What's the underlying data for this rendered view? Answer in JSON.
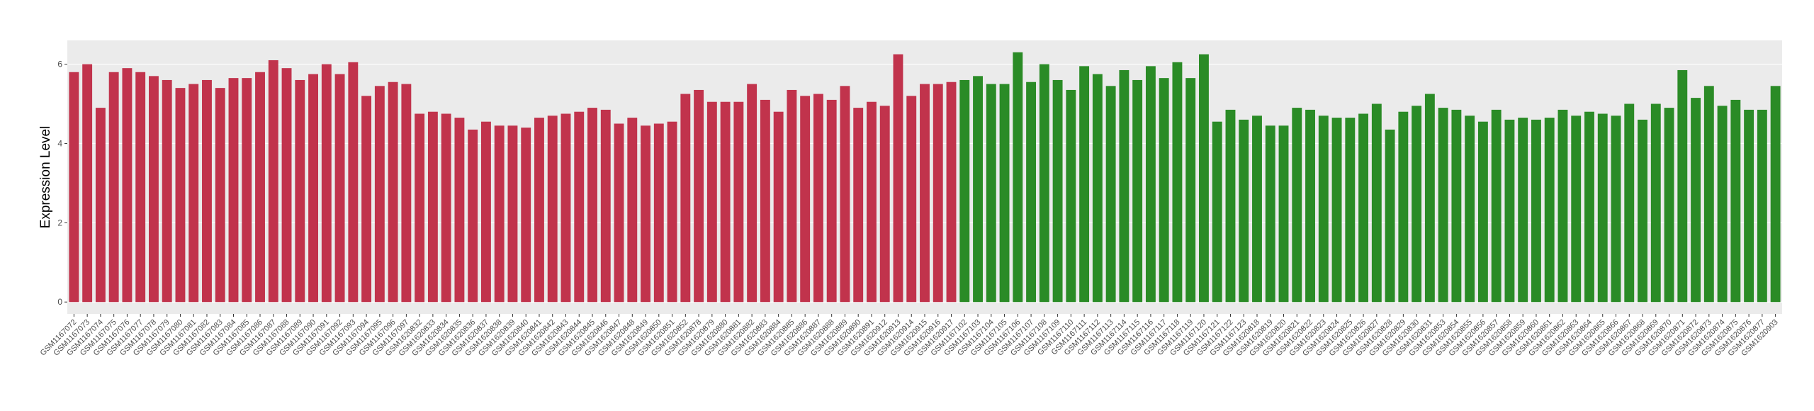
{
  "chart_data": {
    "type": "bar",
    "ylabel": "Expression Level",
    "categories": [
      "GSM1167072",
      "GSM1167073",
      "GSM1167074",
      "GSM1167075",
      "GSM1167076",
      "GSM1167077",
      "GSM1167078",
      "GSM1167079",
      "GSM1167080",
      "GSM1167081",
      "GSM1167082",
      "GSM1167083",
      "GSM1167084",
      "GSM1167085",
      "GSM1167086",
      "GSM1167087",
      "GSM1167088",
      "GSM1167089",
      "GSM1167090",
      "GSM1167091",
      "GSM1167092",
      "GSM1167093",
      "GSM1167094",
      "GSM1167095",
      "GSM1167096",
      "GSM1167097",
      "GSM1620832",
      "GSM1620833",
      "GSM1620834",
      "GSM1620835",
      "GSM1620836",
      "GSM1620837",
      "GSM1620838",
      "GSM1620839",
      "GSM1620840",
      "GSM1620841",
      "GSM1620842",
      "GSM1620843",
      "GSM1620844",
      "GSM1620845",
      "GSM1620846",
      "GSM1620847",
      "GSM1620848",
      "GSM1620849",
      "GSM1620850",
      "GSM1620851",
      "GSM1620852",
      "GSM1620878",
      "GSM1620879",
      "GSM1620880",
      "GSM1620881",
      "GSM1620882",
      "GSM1620883",
      "GSM1620884",
      "GSM1620885",
      "GSM1620886",
      "GSM1620887",
      "GSM1620888",
      "GSM1620889",
      "GSM1620890",
      "GSM1620891",
      "GSM1620912",
      "GSM1620913",
      "GSM1620914",
      "GSM1620915",
      "GSM1620916",
      "GSM1620917",
      "GSM1167102",
      "GSM1167103",
      "GSM1167104",
      "GSM1167105",
      "GSM1167106",
      "GSM1167107",
      "GSM1167108",
      "GSM1167109",
      "GSM1167110",
      "GSM1167111",
      "GSM1167112",
      "GSM1167113",
      "GSM1167114",
      "GSM1167115",
      "GSM1167116",
      "GSM1167117",
      "GSM1167118",
      "GSM1167119",
      "GSM1167120",
      "GSM1167121",
      "GSM1167122",
      "GSM1167123",
      "GSM1620818",
      "GSM1620819",
      "GSM1620820",
      "GSM1620821",
      "GSM1620822",
      "GSM1620823",
      "GSM1620824",
      "GSM1620825",
      "GSM1620826",
      "GSM1620827",
      "GSM1620828",
      "GSM1620829",
      "GSM1620830",
      "GSM1620831",
      "GSM1620853",
      "GSM1620854",
      "GSM1620855",
      "GSM1620856",
      "GSM1620857",
      "GSM1620858",
      "GSM1620859",
      "GSM1620860",
      "GSM1620861",
      "GSM1620862",
      "GSM1620863",
      "GSM1620864",
      "GSM1620865",
      "GSM1620866",
      "GSM1620867",
      "GSM1620868",
      "GSM1620869",
      "GSM1620870",
      "GSM1620871",
      "GSM1620872",
      "GSM1620873",
      "GSM1620874",
      "GSM1620875",
      "GSM1620876",
      "GSM1620877",
      "GSM1620903"
    ],
    "values": [
      5.8,
      6.0,
      4.9,
      5.8,
      5.9,
      5.8,
      5.7,
      5.6,
      5.4,
      5.5,
      5.6,
      5.4,
      5.65,
      5.65,
      5.8,
      6.1,
      5.9,
      5.6,
      5.75,
      6.0,
      5.75,
      6.05,
      5.2,
      5.45,
      5.55,
      5.5,
      4.75,
      4.8,
      4.75,
      4.65,
      4.35,
      4.55,
      4.45,
      4.45,
      4.4,
      4.65,
      4.7,
      4.75,
      4.8,
      4.9,
      4.85,
      4.5,
      4.65,
      4.45,
      4.5,
      4.55,
      5.25,
      5.35,
      5.05,
      5.05,
      5.05,
      5.5,
      5.1,
      4.8,
      5.35,
      5.2,
      5.25,
      5.1,
      5.45,
      4.9,
      5.05,
      4.95,
      6.25,
      5.2,
      5.5,
      5.5,
      5.55,
      5.6,
      5.7,
      5.5,
      5.5,
      6.3,
      5.55,
      6.0,
      5.6,
      5.35,
      5.95,
      5.75,
      5.45,
      5.85,
      5.6,
      5.95,
      5.65,
      6.05,
      5.65,
      6.25,
      4.55,
      4.85,
      4.6,
      4.7,
      4.45,
      4.45,
      4.9,
      4.85,
      4.7,
      4.65,
      4.65,
      4.75,
      5.0,
      4.35,
      4.8,
      4.95,
      5.25,
      4.9,
      4.85,
      4.7,
      4.55,
      4.85,
      4.6,
      4.65,
      4.6,
      4.65,
      4.85,
      4.7,
      4.8,
      4.75,
      4.7,
      5.0,
      4.6,
      5.0,
      4.9,
      5.85,
      5.15,
      5.45,
      4.95,
      5.1,
      4.85,
      4.85,
      5.45
    ],
    "colors": [
      "#c1334c",
      "#c1334c",
      "#c1334c",
      "#c1334c",
      "#c1334c",
      "#c1334c",
      "#c1334c",
      "#c1334c",
      "#c1334c",
      "#c1334c",
      "#c1334c",
      "#c1334c",
      "#c1334c",
      "#c1334c",
      "#c1334c",
      "#c1334c",
      "#c1334c",
      "#c1334c",
      "#c1334c",
      "#c1334c",
      "#c1334c",
      "#c1334c",
      "#c1334c",
      "#c1334c",
      "#c1334c",
      "#c1334c",
      "#c1334c",
      "#c1334c",
      "#c1334c",
      "#c1334c",
      "#c1334c",
      "#c1334c",
      "#c1334c",
      "#c1334c",
      "#c1334c",
      "#c1334c",
      "#c1334c",
      "#c1334c",
      "#c1334c",
      "#c1334c",
      "#c1334c",
      "#c1334c",
      "#c1334c",
      "#c1334c",
      "#c1334c",
      "#c1334c",
      "#c1334c",
      "#c1334c",
      "#c1334c",
      "#c1334c",
      "#c1334c",
      "#c1334c",
      "#c1334c",
      "#c1334c",
      "#c1334c",
      "#c1334c",
      "#c1334c",
      "#c1334c",
      "#c1334c",
      "#c1334c",
      "#c1334c",
      "#c1334c",
      "#c1334c",
      "#c1334c",
      "#c1334c",
      "#c1334c",
      "#c1334c",
      "#2a8b26",
      "#2a8b26",
      "#2a8b26",
      "#2a8b26",
      "#2a8b26",
      "#2a8b26",
      "#2a8b26",
      "#2a8b26",
      "#2a8b26",
      "#2a8b26",
      "#2a8b26",
      "#2a8b26",
      "#2a8b26",
      "#2a8b26",
      "#2a8b26",
      "#2a8b26",
      "#2a8b26",
      "#2a8b26",
      "#2a8b26",
      "#2a8b26",
      "#2a8b26",
      "#2a8b26",
      "#2a8b26",
      "#2a8b26",
      "#2a8b26",
      "#2a8b26",
      "#2a8b26",
      "#2a8b26",
      "#2a8b26",
      "#2a8b26",
      "#2a8b26",
      "#2a8b26",
      "#2a8b26",
      "#2a8b26",
      "#2a8b26",
      "#2a8b26",
      "#2a8b26",
      "#2a8b26",
      "#2a8b26",
      "#2a8b26",
      "#2a8b26",
      "#2a8b26",
      "#2a8b26",
      "#2a8b26",
      "#2a8b26",
      "#2a8b26",
      "#2a8b26",
      "#2a8b26",
      "#2a8b26",
      "#2a8b26",
      "#2a8b26",
      "#2a8b26",
      "#2a8b26",
      "#2a8b26",
      "#2a8b26",
      "#2a8b26",
      "#2a8b26",
      "#2a8b26",
      "#2a8b26",
      "#2a8b26",
      "#2a8b26",
      "#2a8b26"
    ],
    "ylim": [
      -0.3,
      6.6
    ],
    "yticks": [
      0,
      2,
      4,
      6
    ],
    "grid": true
  }
}
